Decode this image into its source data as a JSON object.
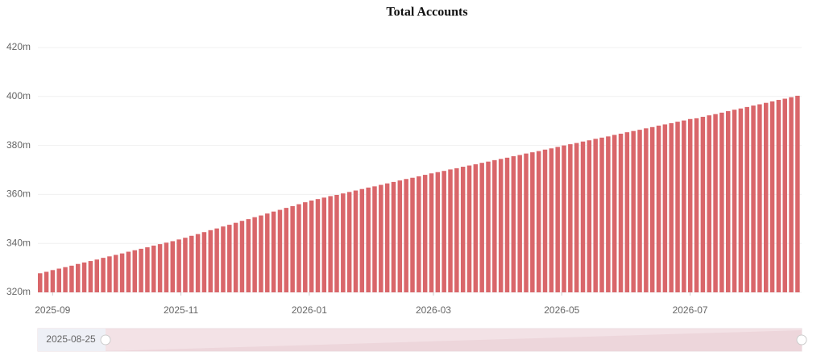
{
  "chart_data": {
    "type": "bar",
    "title": "Total Accounts",
    "color": "#d9666a",
    "x": [
      "2025-08-25",
      "2025-08-28",
      "2025-08-31",
      "2025-09-03",
      "2025-09-06",
      "2025-09-09",
      "2025-09-12",
      "2025-09-15",
      "2025-09-18",
      "2025-09-21",
      "2025-09-24",
      "2025-09-27",
      "2025-09-30",
      "2025-10-03",
      "2025-10-06",
      "2025-10-09",
      "2025-10-12",
      "2025-10-15",
      "2025-10-18",
      "2025-10-21",
      "2025-10-24",
      "2025-10-27",
      "2025-10-30",
      "2025-11-02",
      "2025-11-05",
      "2025-11-08",
      "2025-11-11",
      "2025-11-14",
      "2025-11-17",
      "2025-11-20",
      "2025-11-23",
      "2025-11-26",
      "2025-11-29",
      "2025-12-02",
      "2025-12-05",
      "2025-12-08",
      "2025-12-11",
      "2025-12-14",
      "2025-12-17",
      "2025-12-20",
      "2025-12-23",
      "2025-12-26",
      "2025-12-29",
      "2026-01-01",
      "2026-01-04",
      "2026-01-07",
      "2026-01-10",
      "2026-01-13",
      "2026-01-16",
      "2026-01-19",
      "2026-01-22",
      "2026-01-25",
      "2026-01-28",
      "2026-01-31",
      "2026-02-03",
      "2026-02-06",
      "2026-02-09",
      "2026-02-12",
      "2026-02-15",
      "2026-02-18",
      "2026-02-21",
      "2026-02-24",
      "2026-02-27",
      "2026-03-02",
      "2026-03-05",
      "2026-03-08",
      "2026-03-11",
      "2026-03-14",
      "2026-03-17",
      "2026-03-20",
      "2026-03-23",
      "2026-03-26",
      "2026-03-29",
      "2026-04-01",
      "2026-04-04",
      "2026-04-07",
      "2026-04-10",
      "2026-04-13",
      "2026-04-16",
      "2026-04-19",
      "2026-04-22",
      "2026-04-25",
      "2026-04-28",
      "2026-05-01",
      "2026-05-04",
      "2026-05-07",
      "2026-05-10",
      "2026-05-13",
      "2026-05-16",
      "2026-05-19",
      "2026-05-22",
      "2026-05-25",
      "2026-05-28",
      "2026-05-31",
      "2026-06-03",
      "2026-06-06",
      "2026-06-09",
      "2026-06-12",
      "2026-06-15",
      "2026-06-18",
      "2026-06-21",
      "2026-06-24",
      "2026-06-27",
      "2026-06-30",
      "2026-07-03",
      "2026-07-06",
      "2026-07-09",
      "2026-07-12",
      "2026-07-15",
      "2026-07-18",
      "2026-07-21",
      "2026-07-24",
      "2026-07-27",
      "2026-07-30",
      "2026-08-02",
      "2026-08-05",
      "2026-08-08",
      "2026-08-11",
      "2026-08-14",
      "2026-08-17",
      "2026-08-20"
    ],
    "values": [
      327.8,
      328.4,
      329.1,
      329.7,
      330.3,
      330.9,
      331.6,
      332.2,
      332.8,
      333.4,
      334.1,
      334.7,
      335.3,
      335.9,
      336.6,
      337.2,
      337.8,
      338.4,
      339.1,
      339.7,
      340.3,
      340.9,
      341.6,
      342.3,
      343.1,
      343.8,
      344.6,
      345.4,
      346.1,
      346.9,
      347.6,
      348.4,
      349.2,
      349.9,
      350.7,
      351.4,
      352.2,
      353.0,
      353.7,
      354.5,
      355.2,
      356.0,
      356.8,
      357.5,
      358.1,
      358.7,
      359.3,
      359.8,
      360.4,
      361.0,
      361.6,
      362.2,
      362.8,
      363.3,
      363.9,
      364.5,
      365.1,
      365.7,
      366.3,
      366.8,
      367.4,
      368.0,
      368.6,
      369.1,
      369.6,
      370.2,
      370.7,
      371.3,
      371.8,
      372.3,
      372.9,
      373.4,
      374.0,
      374.5,
      375.0,
      375.6,
      376.1,
      376.7,
      377.2,
      377.7,
      378.3,
      378.8,
      379.4,
      380.0,
      380.5,
      381.0,
      381.6,
      382.1,
      382.7,
      383.2,
      383.7,
      384.3,
      384.8,
      385.4,
      385.9,
      386.4,
      387.0,
      387.5,
      388.1,
      388.6,
      389.1,
      389.7,
      390.2,
      390.8,
      391.1,
      391.7,
      392.3,
      392.8,
      393.4,
      394.0,
      394.6,
      395.1,
      395.7,
      396.3,
      396.8,
      397.4,
      398.0,
      398.6,
      399.1,
      399.7,
      400.3
    ],
    "xlim": [
      "2025-08-25",
      "2026-08-23"
    ],
    "xticks": [
      "2025-09",
      "2025-11",
      "2026-01",
      "2026-03",
      "2026-05",
      "2026-07"
    ],
    "ylim": [
      320,
      420
    ],
    "yticks": [
      {
        "value": 320,
        "label": "320m"
      },
      {
        "value": 340,
        "label": "340m"
      },
      {
        "value": 360,
        "label": "360m"
      },
      {
        "value": 380,
        "label": "380m"
      },
      {
        "value": 400,
        "label": "400m"
      },
      {
        "value": 420,
        "label": "420m"
      }
    ],
    "grid": true,
    "data_zoom": {
      "start_label": "2025-08-25"
    }
  }
}
